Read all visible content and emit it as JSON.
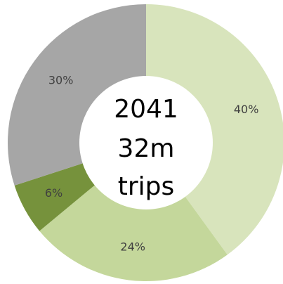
{
  "chart_data": {
    "type": "donut",
    "center_text": [
      "2041",
      "32m",
      "trips"
    ],
    "categories": [
      null,
      null,
      null,
      null
    ],
    "values": [
      40,
      24,
      6,
      30
    ],
    "value_labels": [
      "40%",
      "24%",
      "6%",
      "30%"
    ],
    "colors": [
      "#d8e4bc",
      "#c4d79b",
      "#76923c",
      "#a6a6a6"
    ]
  }
}
